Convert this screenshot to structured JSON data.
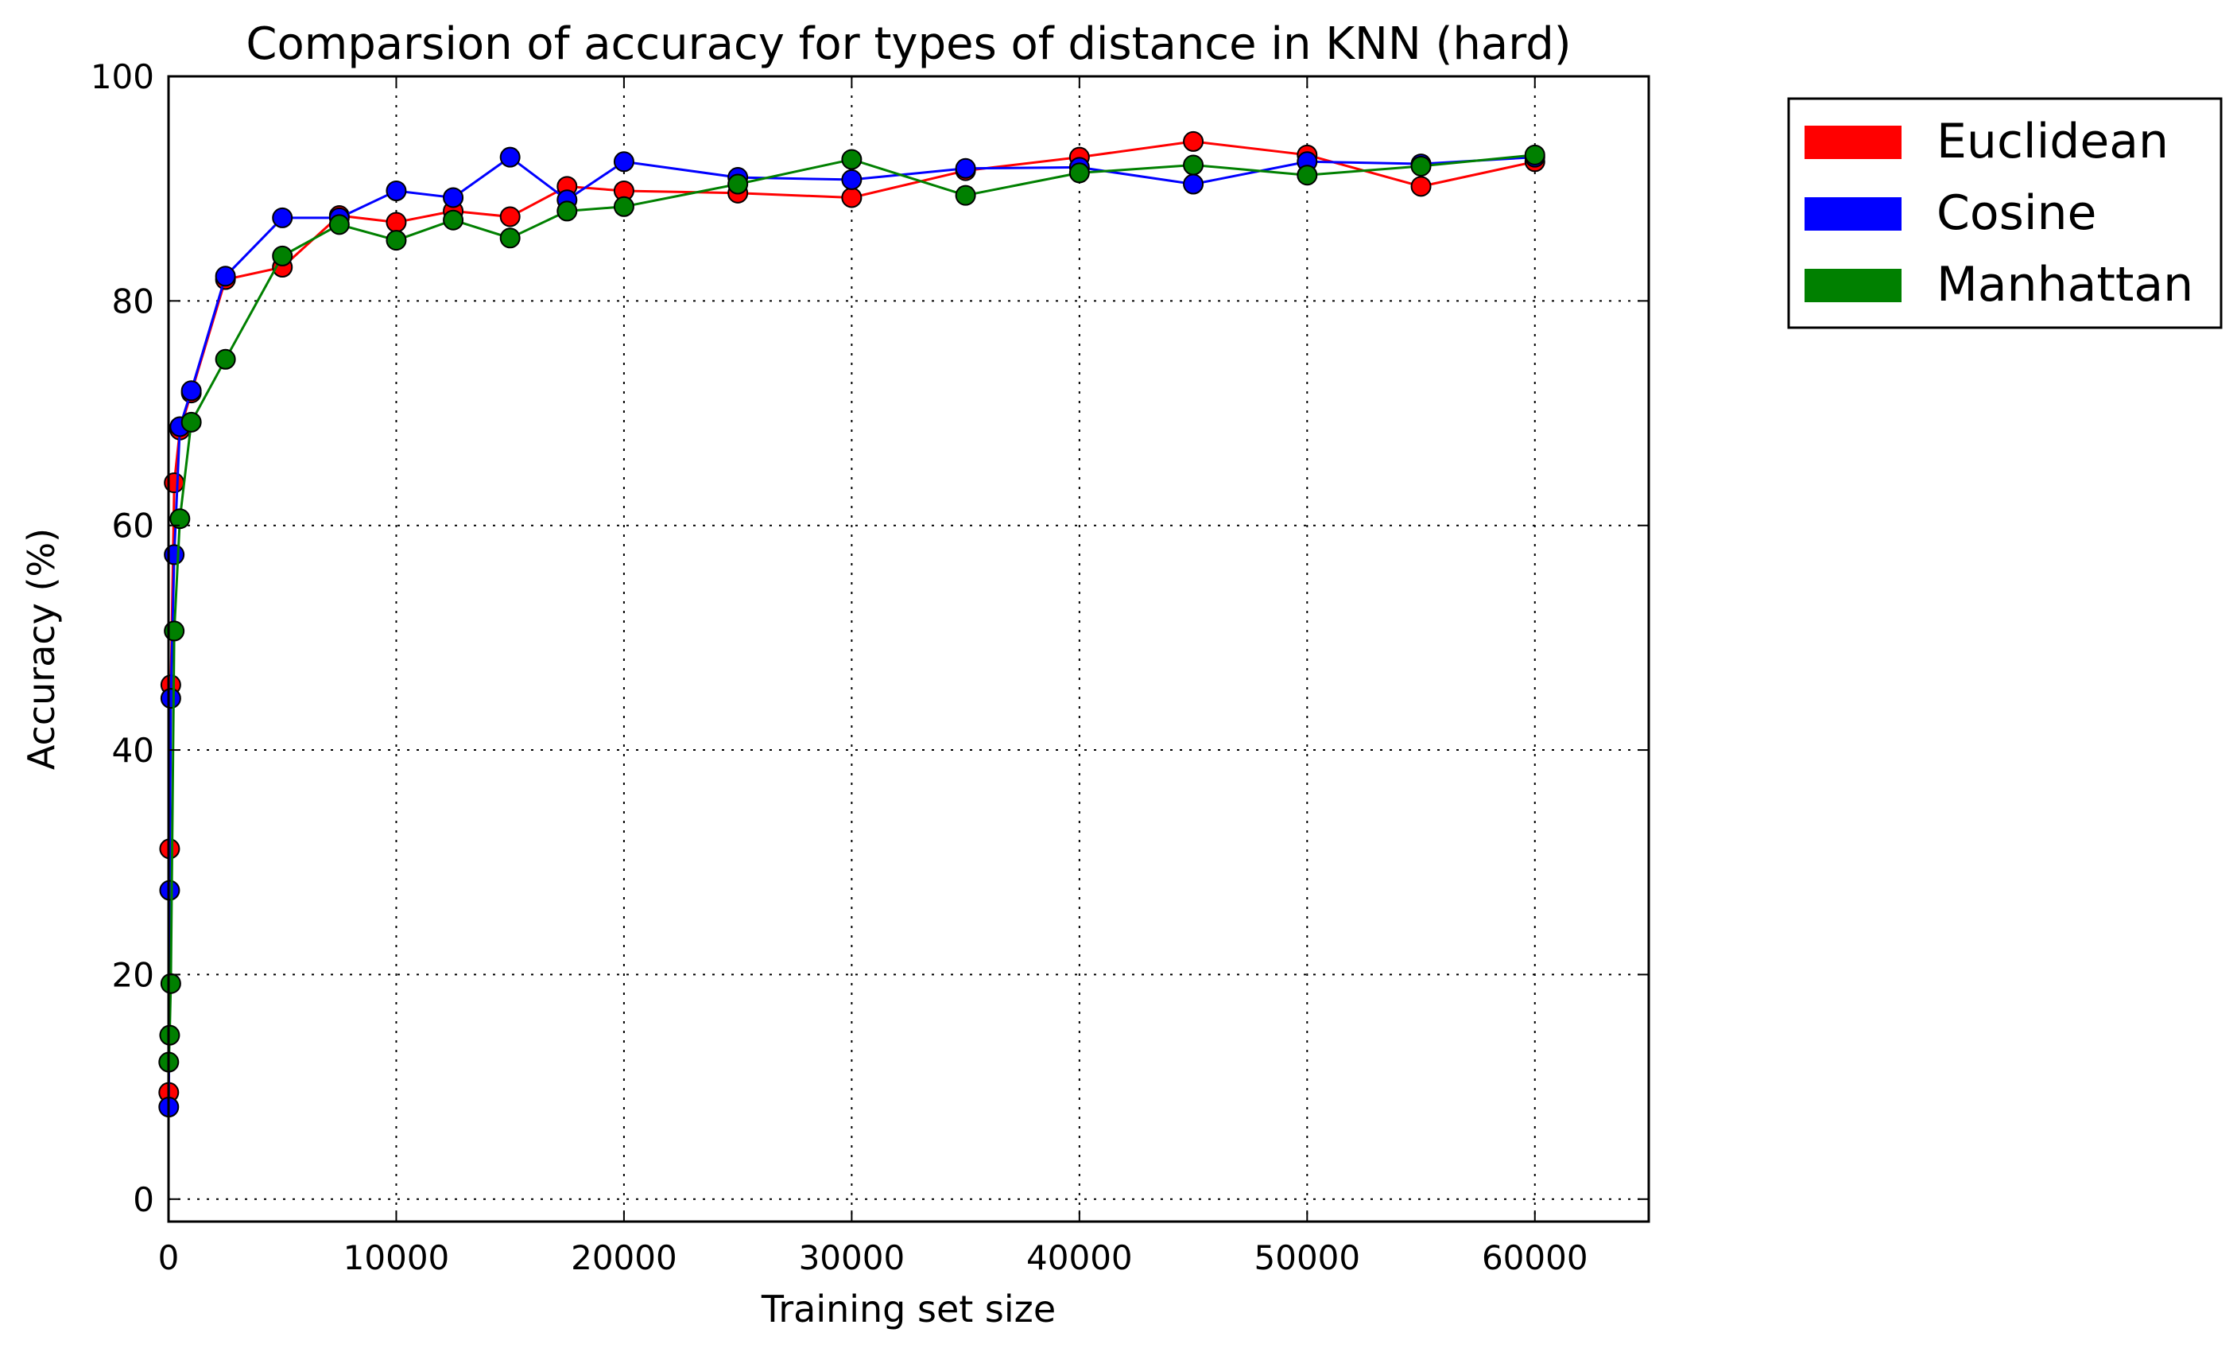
{
  "chart_data": {
    "type": "line",
    "title": "Comparsion of accuracy for types of distance in KNN (hard)",
    "xlabel": "Training set size",
    "ylabel": "Accuracy (%)",
    "xlim": [
      0,
      65000
    ],
    "ylim": [
      -2,
      100
    ],
    "xticks": [
      0,
      10000,
      20000,
      30000,
      40000,
      50000,
      60000
    ],
    "yticks": [
      0,
      20,
      40,
      60,
      80,
      100
    ],
    "grid": true,
    "legend_position": "outside-right-top",
    "series": [
      {
        "name": "Euclidean",
        "color": "#ff0000",
        "points": [
          [
            10,
            9.5
          ],
          [
            50,
            31.2
          ],
          [
            100,
            45.8
          ],
          [
            250,
            63.8
          ],
          [
            500,
            68.5
          ],
          [
            1000,
            71.8
          ],
          [
            2500,
            81.9
          ],
          [
            5000,
            83.0
          ],
          [
            7500,
            87.6
          ],
          [
            10000,
            87.0
          ],
          [
            12500,
            88.0
          ],
          [
            15000,
            87.5
          ],
          [
            17500,
            90.2
          ],
          [
            20000,
            89.8
          ],
          [
            25000,
            89.6
          ],
          [
            30000,
            89.2
          ],
          [
            35000,
            91.6
          ],
          [
            40000,
            92.8
          ],
          [
            45000,
            94.2
          ],
          [
            50000,
            93.0
          ],
          [
            55000,
            90.2
          ],
          [
            60000,
            92.4
          ]
        ]
      },
      {
        "name": "Cosine",
        "color": "#0000ff",
        "points": [
          [
            10,
            8.2
          ],
          [
            50,
            27.5
          ],
          [
            100,
            44.6
          ],
          [
            250,
            57.4
          ],
          [
            500,
            68.8
          ],
          [
            1000,
            72.0
          ],
          [
            2500,
            82.2
          ],
          [
            5000,
            87.4
          ],
          [
            7500,
            87.4
          ],
          [
            10000,
            89.8
          ],
          [
            12500,
            89.2
          ],
          [
            15000,
            92.8
          ],
          [
            17500,
            89.0
          ],
          [
            20000,
            92.4
          ],
          [
            25000,
            91.0
          ],
          [
            30000,
            90.8
          ],
          [
            35000,
            91.8
          ],
          [
            40000,
            91.9
          ],
          [
            45000,
            90.4
          ],
          [
            50000,
            92.4
          ],
          [
            55000,
            92.2
          ],
          [
            60000,
            92.8
          ]
        ]
      },
      {
        "name": "Manhattan",
        "color": "#008000",
        "points": [
          [
            10,
            12.2
          ],
          [
            50,
            14.6
          ],
          [
            100,
            19.2
          ],
          [
            250,
            50.6
          ],
          [
            500,
            60.6
          ],
          [
            1000,
            69.2
          ],
          [
            2500,
            74.8
          ],
          [
            5000,
            84.0
          ],
          [
            7500,
            86.8
          ],
          [
            10000,
            85.4
          ],
          [
            12500,
            87.2
          ],
          [
            15000,
            85.6
          ],
          [
            17500,
            88.0
          ],
          [
            20000,
            88.4
          ],
          [
            25000,
            90.4
          ],
          [
            30000,
            92.6
          ],
          [
            35000,
            89.4
          ],
          [
            40000,
            91.4
          ],
          [
            45000,
            92.1
          ],
          [
            50000,
            91.2
          ],
          [
            55000,
            92.0
          ],
          [
            60000,
            93.0
          ]
        ]
      }
    ]
  }
}
